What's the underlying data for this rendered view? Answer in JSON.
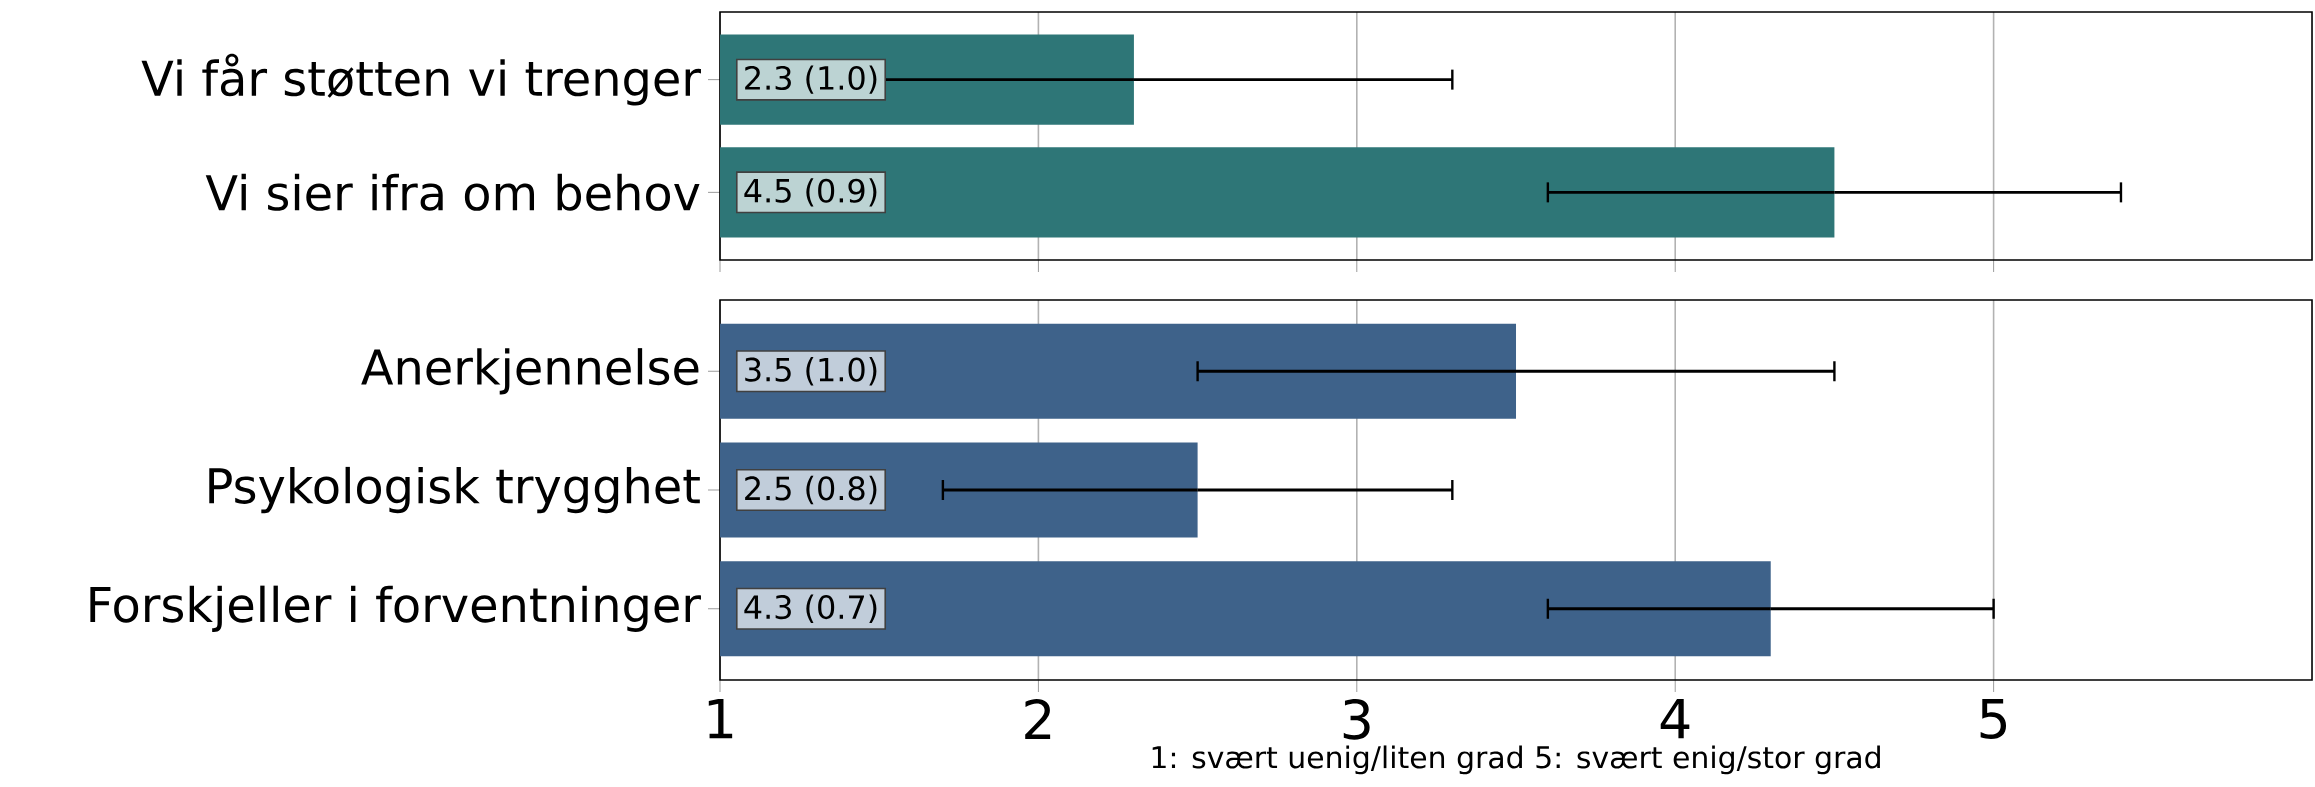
{
  "chart_data": [
    {
      "type": "bar",
      "orientation": "horizontal",
      "categories": [
        "Vi får støtten vi trenger",
        "Vi sier ifra om behov"
      ],
      "values": [
        2.3,
        4.5
      ],
      "errors": [
        1.0,
        0.9
      ],
      "value_labels": [
        "2.3 (1.0)",
        "4.5 (0.9)"
      ],
      "color": "#2e7677",
      "xlim": [
        1,
        6
      ],
      "xticks": [
        1,
        2,
        3,
        4,
        5
      ],
      "grid": "x",
      "tick_labels": "y"
    },
    {
      "type": "bar",
      "orientation": "horizontal",
      "categories": [
        "Anerkjennelse",
        "Psykologisk trygghet",
        "Forskjeller i forventninger"
      ],
      "values": [
        3.5,
        2.5,
        4.3
      ],
      "errors": [
        1.0,
        0.8,
        0.7
      ],
      "value_labels": [
        "3.5 (1.0)",
        "2.5 (0.8)",
        "4.3 (0.7)"
      ],
      "color": "#3e628a",
      "xlim": [
        1,
        6
      ],
      "xticks": [
        1,
        2,
        3,
        4,
        5
      ],
      "grid": "x",
      "xlabel": "1: svært uenig/liten grad 5: svært enig/stor grad"
    }
  ]
}
